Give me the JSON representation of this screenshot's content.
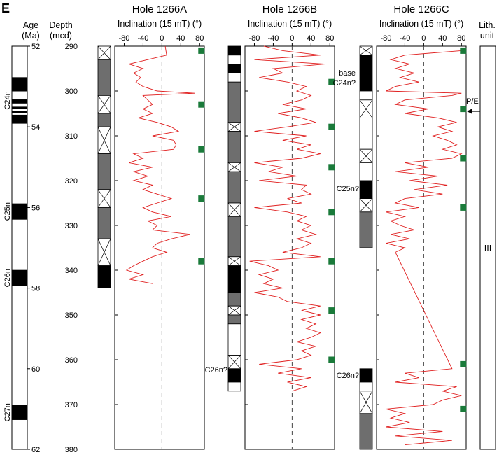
{
  "panel_letter": "E",
  "headers": {
    "age": [
      "Age",
      "(Ma)"
    ],
    "depth": [
      "Depth",
      "(mcd)"
    ],
    "lith": [
      "Lith.",
      "unit"
    ]
  },
  "lith_unit": "III",
  "annotations": {
    "base_c24n": [
      "base",
      "C24n?"
    ],
    "pe": "P/E",
    "c25n_B": "C25n?",
    "c26n_B": "C26n?",
    "c26n_C": "C26n?"
  },
  "colors": {
    "trace": "#e01f1f",
    "marker": "#1a7a3a",
    "grey": "#6e6e6e",
    "black": "#000000"
  },
  "age_scale": {
    "ticks": [
      52,
      54,
      56,
      58,
      60,
      62
    ],
    "chrons": [
      {
        "name": "C24n",
        "blocks": [
          [
            52.77,
            53.12
          ],
          [
            53.32,
            53.42
          ],
          [
            53.5,
            53.55
          ],
          [
            53.6,
            53.66
          ],
          [
            53.7,
            53.92
          ]
        ]
      },
      {
        "name": "C25n",
        "blocks": [
          [
            55.9,
            56.3
          ]
        ]
      },
      {
        "name": "C26n",
        "blocks": [
          [
            57.55,
            57.95
          ]
        ]
      },
      {
        "name": "C27n",
        "blocks": [
          [
            60.9,
            61.27
          ]
        ]
      }
    ]
  },
  "depth_scale": {
    "ticks": [
      290,
      300,
      310,
      320,
      330,
      340,
      350,
      360,
      370,
      380
    ]
  },
  "chart_data": [
    {
      "type": "line",
      "title": "Hole 1266A",
      "xlabel": "Inclination (15 mT) (°)",
      "ylabel": "Depth (mcd)",
      "xticks": [
        -80,
        -40,
        0,
        40,
        80
      ],
      "xlim": [
        -100,
        90
      ],
      "ylim": [
        290,
        380
      ],
      "column_blocks": [
        {
          "top": 290,
          "bottom": 293,
          "fill": "cross"
        },
        {
          "top": 293,
          "bottom": 301,
          "fill": "grey"
        },
        {
          "top": 301,
          "bottom": 305,
          "fill": "cross"
        },
        {
          "top": 305,
          "bottom": 308,
          "fill": "grey"
        },
        {
          "top": 308,
          "bottom": 314,
          "fill": "cross"
        },
        {
          "top": 314,
          "bottom": 322,
          "fill": "grey"
        },
        {
          "top": 322,
          "bottom": 326,
          "fill": "cross"
        },
        {
          "top": 326,
          "bottom": 333,
          "fill": "grey"
        },
        {
          "top": 333,
          "bottom": 339,
          "fill": "cross"
        },
        {
          "top": 339,
          "bottom": 344,
          "fill": "black"
        }
      ],
      "markers": [
        291,
        303,
        313,
        324,
        338
      ],
      "trace": [
        [
          290,
          7
        ],
        [
          292,
          10
        ],
        [
          293,
          -30
        ],
        [
          294,
          -70
        ],
        [
          295,
          -40
        ],
        [
          296,
          -60
        ],
        [
          297,
          -45
        ],
        [
          298,
          -55
        ],
        [
          299,
          -40
        ],
        [
          300,
          -10
        ],
        [
          300.5,
          70
        ],
        [
          301,
          -40
        ],
        [
          302,
          -30
        ],
        [
          303,
          -20
        ],
        [
          304,
          -40
        ],
        [
          305,
          -20
        ],
        [
          306,
          -50
        ],
        [
          307,
          -10
        ],
        [
          308,
          20
        ],
        [
          309,
          35
        ],
        [
          310,
          -20
        ],
        [
          311,
          25
        ],
        [
          312,
          30
        ],
        [
          313,
          25
        ],
        [
          314,
          -60
        ],
        [
          315,
          -40
        ],
        [
          316,
          -70
        ],
        [
          317,
          -20
        ],
        [
          318,
          -60
        ],
        [
          319,
          -30
        ],
        [
          320,
          -60
        ],
        [
          321,
          -20
        ],
        [
          322,
          -40
        ],
        [
          323,
          -10
        ],
        [
          324,
          20
        ],
        [
          325,
          -10
        ],
        [
          326,
          -40
        ],
        [
          327,
          -20
        ],
        [
          328,
          20
        ],
        [
          329,
          -30
        ],
        [
          330,
          -10
        ],
        [
          331,
          -20
        ],
        [
          332,
          60
        ],
        [
          333,
          20
        ],
        [
          334,
          -10
        ],
        [
          335,
          -20
        ],
        [
          336,
          10
        ],
        [
          337,
          -20
        ],
        [
          338,
          -40
        ],
        [
          339,
          -60
        ],
        [
          340,
          -75
        ],
        [
          341,
          -40
        ],
        [
          342,
          -70
        ],
        [
          343,
          -20
        ]
      ]
    },
    {
      "type": "line",
      "title": "Hole 1266B",
      "xlabel": "Inclination (15 mT) (°)",
      "ylabel": "Depth (mcd)",
      "xticks": [
        -80,
        -40,
        0,
        40,
        80
      ],
      "xlim": [
        -100,
        90
      ],
      "ylim": [
        290,
        380
      ],
      "column_blocks": [
        {
          "top": 290,
          "bottom": 292,
          "fill": "black"
        },
        {
          "top": 292,
          "bottom": 294,
          "fill": "white"
        },
        {
          "top": 294,
          "bottom": 296,
          "fill": "black"
        },
        {
          "top": 296,
          "bottom": 298,
          "fill": "white"
        },
        {
          "top": 298,
          "bottom": 307,
          "fill": "grey"
        },
        {
          "top": 307,
          "bottom": 309,
          "fill": "cross"
        },
        {
          "top": 309,
          "bottom": 316,
          "fill": "grey"
        },
        {
          "top": 316,
          "bottom": 318,
          "fill": "cross"
        },
        {
          "top": 318,
          "bottom": 325,
          "fill": "grey"
        },
        {
          "top": 325,
          "bottom": 328,
          "fill": "cross"
        },
        {
          "top": 328,
          "bottom": 337,
          "fill": "grey"
        },
        {
          "top": 337,
          "bottom": 339,
          "fill": "cross"
        },
        {
          "top": 339,
          "bottom": 345,
          "fill": "black"
        },
        {
          "top": 345,
          "bottom": 348,
          "fill": "grey"
        },
        {
          "top": 348,
          "bottom": 350,
          "fill": "cross"
        },
        {
          "top": 350,
          "bottom": 352,
          "fill": "grey"
        },
        {
          "top": 352,
          "bottom": 359,
          "fill": "white"
        },
        {
          "top": 359,
          "bottom": 362,
          "fill": "cross"
        },
        {
          "top": 362,
          "bottom": 365,
          "fill": "black"
        },
        {
          "top": 365,
          "bottom": 367,
          "fill": "white"
        }
      ],
      "markers": [
        298,
        308,
        317,
        327,
        338,
        349,
        360
      ],
      "trace": [
        [
          290,
          -60
        ],
        [
          291,
          -20
        ],
        [
          292,
          60
        ],
        [
          293,
          -80
        ],
        [
          294,
          70
        ],
        [
          295,
          -40
        ],
        [
          296,
          -20
        ],
        [
          297,
          -70
        ],
        [
          298,
          -10
        ],
        [
          299,
          30
        ],
        [
          300,
          10
        ],
        [
          301,
          40
        ],
        [
          302,
          20
        ],
        [
          303,
          -20
        ],
        [
          304,
          30
        ],
        [
          305,
          -30
        ],
        [
          306,
          20
        ],
        [
          307,
          50
        ],
        [
          308,
          -10
        ],
        [
          309,
          -80
        ],
        [
          310,
          30
        ],
        [
          311,
          -20
        ],
        [
          312,
          40
        ],
        [
          313,
          10
        ],
        [
          314,
          60
        ],
        [
          315,
          20
        ],
        [
          316,
          -80
        ],
        [
          317,
          -20
        ],
        [
          318,
          -50
        ],
        [
          319,
          10
        ],
        [
          320,
          -70
        ],
        [
          321,
          30
        ],
        [
          322,
          20
        ],
        [
          323,
          40
        ],
        [
          324,
          -10
        ],
        [
          325,
          20
        ],
        [
          326,
          -80
        ],
        [
          327,
          -10
        ],
        [
          328,
          30
        ],
        [
          329,
          10
        ],
        [
          330,
          40
        ],
        [
          331,
          20
        ],
        [
          332,
          50
        ],
        [
          333,
          10
        ],
        [
          334,
          40
        ],
        [
          335,
          20
        ],
        [
          336,
          -20
        ],
        [
          337,
          60
        ],
        [
          338,
          -90
        ],
        [
          339,
          -50
        ],
        [
          340,
          -30
        ],
        [
          341,
          -70
        ],
        [
          342,
          -40
        ],
        [
          343,
          -60
        ],
        [
          344,
          -20
        ],
        [
          345,
          -80
        ],
        [
          346,
          -30
        ],
        [
          347,
          -10
        ],
        [
          348,
          60
        ],
        [
          349,
          20
        ],
        [
          350,
          60
        ],
        [
          351,
          20
        ],
        [
          352,
          50
        ],
        [
          353,
          30
        ],
        [
          354,
          60
        ],
        [
          355,
          40
        ],
        [
          356,
          10
        ],
        [
          357,
          50
        ],
        [
          358,
          20
        ],
        [
          359,
          40
        ],
        [
          360,
          10
        ],
        [
          361,
          -70
        ],
        [
          362,
          20
        ],
        [
          363,
          -30
        ],
        [
          364,
          40
        ],
        [
          365,
          -10
        ],
        [
          366,
          30
        ],
        [
          367,
          0
        ]
      ]
    },
    {
      "type": "line",
      "title": "Hole 1266C",
      "xlabel": "Inclination (15 mT) (°)",
      "ylabel": "Depth (mcd)",
      "xticks": [
        -80,
        -40,
        0,
        40,
        80
      ],
      "xlim": [
        -100,
        90
      ],
      "ylim": [
        290,
        380
      ],
      "column_blocks": [
        {
          "top": 290,
          "bottom": 292,
          "fill": "cross"
        },
        {
          "top": 292,
          "bottom": 300,
          "fill": "black"
        },
        {
          "top": 300,
          "bottom": 302,
          "fill": "white"
        },
        {
          "top": 302,
          "bottom": 306,
          "fill": "cross"
        },
        {
          "top": 306,
          "bottom": 313,
          "fill": "white"
        },
        {
          "top": 313,
          "bottom": 316,
          "fill": "cross"
        },
        {
          "top": 316,
          "bottom": 320,
          "fill": "white"
        },
        {
          "top": 320,
          "bottom": 324,
          "fill": "black"
        },
        {
          "top": 324,
          "bottom": 327,
          "fill": "cross"
        },
        {
          "top": 327,
          "bottom": 335,
          "fill": "grey"
        },
        {
          "top": 362,
          "bottom": 365,
          "fill": "black"
        },
        {
          "top": 365,
          "bottom": 367,
          "fill": "white"
        },
        {
          "top": 367,
          "bottom": 372,
          "fill": "cross"
        },
        {
          "top": 372,
          "bottom": 380,
          "fill": "grey"
        }
      ],
      "markers": [
        291,
        304,
        315,
        326,
        361,
        371
      ],
      "trace": [
        [
          291,
          80
        ],
        [
          292,
          -40
        ],
        [
          293,
          -70
        ],
        [
          294,
          -30
        ],
        [
          295,
          -60
        ],
        [
          296,
          -20
        ],
        [
          297,
          -50
        ],
        [
          298,
          -10
        ],
        [
          299,
          -60
        ],
        [
          300,
          -80
        ],
        [
          300.5,
          80
        ],
        [
          301,
          60
        ],
        [
          302,
          -40
        ],
        [
          303,
          -60
        ],
        [
          304,
          10
        ],
        [
          305,
          -40
        ],
        [
          306,
          30
        ],
        [
          307,
          70
        ],
        [
          308,
          30
        ],
        [
          309,
          60
        ],
        [
          310,
          20
        ],
        [
          311,
          50
        ],
        [
          312,
          70
        ],
        [
          313,
          40
        ],
        [
          314,
          80
        ],
        [
          315,
          60
        ],
        [
          316,
          -40
        ],
        [
          317,
          10
        ],
        [
          318,
          -60
        ],
        [
          319,
          30
        ],
        [
          320,
          -30
        ],
        [
          321,
          50
        ],
        [
          322,
          -20
        ],
        [
          323,
          40
        ],
        [
          324,
          -40
        ],
        [
          325,
          -60
        ],
        [
          326,
          -10
        ],
        [
          327,
          -80
        ],
        [
          328,
          -40
        ],
        [
          329,
          -70
        ],
        [
          330,
          -50
        ],
        [
          331,
          -20
        ],
        [
          332,
          -70
        ],
        [
          333,
          -30
        ],
        [
          334,
          -80
        ],
        [
          335,
          -40
        ],
        [
          336,
          -60
        ],
        [
          362,
          60
        ],
        [
          363,
          -40
        ],
        [
          364,
          -10
        ],
        [
          365,
          -60
        ],
        [
          366,
          70
        ],
        [
          367,
          40
        ],
        [
          368,
          80
        ],
        [
          369,
          40
        ],
        [
          370,
          20
        ],
        [
          371,
          -80
        ],
        [
          372,
          -40
        ],
        [
          373,
          -70
        ],
        [
          374,
          -30
        ],
        [
          375,
          -80
        ],
        [
          376,
          40
        ],
        [
          377,
          -60
        ],
        [
          378,
          60
        ],
        [
          379,
          -40
        ]
      ]
    }
  ]
}
